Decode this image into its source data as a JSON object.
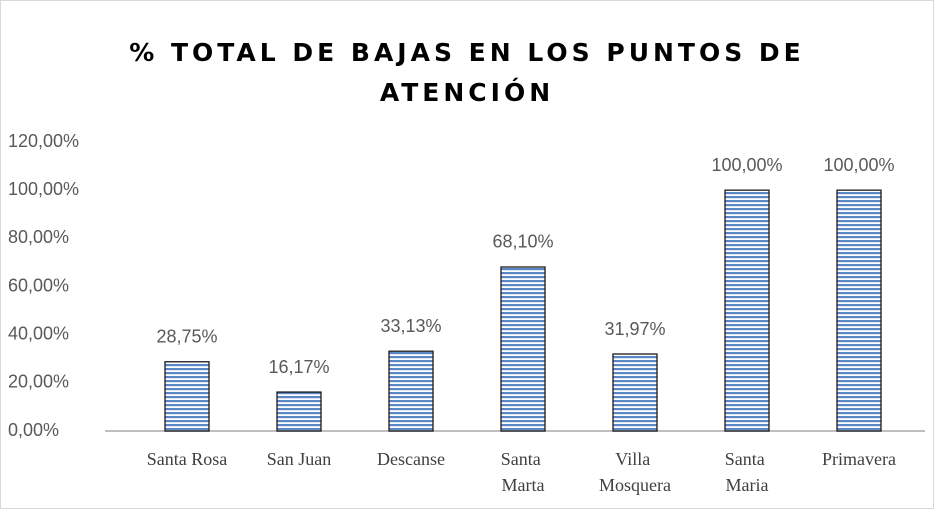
{
  "chart_data": {
    "type": "bar",
    "title": "% TOTAL DE BAJAS EN LOS PUNTOS DE ATENCIÓN",
    "categories": [
      "Santa Rosa",
      "San Juan",
      "Descanse",
      "Santa Marta",
      "Villa Mosquera",
      "Santa Maria",
      "Primavera"
    ],
    "values": [
      28.75,
      16.17,
      33.13,
      68.1,
      31.97,
      100,
      100
    ],
    "value_labels": [
      "28,75%",
      "16,17%",
      "33,13%",
      "68,10%",
      "31,97%",
      "100,00%",
      "100,00%"
    ],
    "color": "#5b87c5",
    "ylim": [
      0,
      120
    ],
    "yticks": [
      {
        "value": 0,
        "label": "0,00%"
      },
      {
        "value": 20,
        "label": "20,00%"
      },
      {
        "value": 40,
        "label": "40,00%"
      },
      {
        "value": 60,
        "label": "60,00%"
      },
      {
        "value": 80,
        "label": "80,00%"
      },
      {
        "value": 100,
        "label": "100,00%"
      },
      {
        "value": 120,
        "label": "120,00%"
      }
    ],
    "grid": false
  }
}
